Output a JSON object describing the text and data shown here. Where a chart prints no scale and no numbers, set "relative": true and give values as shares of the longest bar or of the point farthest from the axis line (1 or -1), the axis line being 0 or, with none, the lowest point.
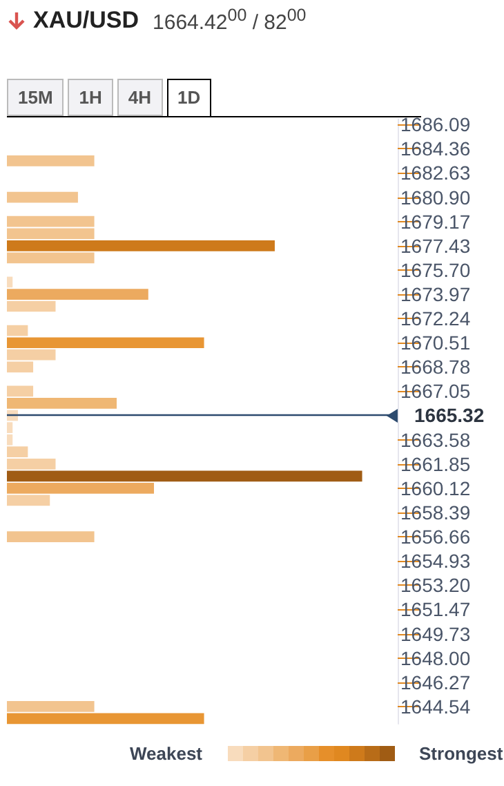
{
  "chart_data": {
    "type": "bar",
    "orientation": "horizontal",
    "relative": true,
    "title": "XAU/USD",
    "subtitle": "1664.42$^{00}$ / 82$^{00}$",
    "annotations": [
      "15M",
      "1H",
      "4H",
      "1D",
      "Weakest",
      "Strongest"
    ],
    "x": [
      1686.09,
      1685.23,
      1684.36,
      1683.5,
      1682.63,
      1681.77,
      1680.9,
      1680.04,
      1679.17,
      1678.3,
      1677.43,
      1676.57,
      1675.7,
      1674.84,
      1673.97,
      1673.11,
      1672.24,
      1671.38,
      1670.51,
      1669.65,
      1668.78,
      1667.92,
      1667.05,
      1666.19,
      1665.32,
      1664.45,
      1663.58,
      1662.72,
      1661.85,
      1660.99,
      1660.12,
      1659.26,
      1658.39,
      1657.53,
      1656.66,
      1655.8,
      1654.93,
      1654.07,
      1653.2,
      1652.34,
      1651.47,
      1650.6,
      1649.73,
      1648.87,
      1648.0,
      1647.14,
      1646.27,
      1645.41,
      1644.54,
      1643.68
    ],
    "values": [
      0,
      0,
      0,
      0.246,
      0,
      0,
      0.2,
      0,
      0.246,
      0.246,
      0.754,
      0.246,
      0,
      0.016,
      0.398,
      0.137,
      0,
      0.059,
      0.555,
      0.137,
      0.074,
      0,
      0.074,
      0.309,
      0.031,
      0.016,
      0.016,
      0.059,
      0.137,
      1,
      0.414,
      0.121,
      0,
      0,
      0.246,
      0,
      0,
      0,
      0,
      0,
      0,
      0,
      0,
      0,
      0,
      0,
      0,
      0,
      0.246,
      0.555
    ],
    "colors": [
      null,
      null,
      null,
      "#f2c48f",
      null,
      null,
      "#f2c48f",
      null,
      "#f2c48f",
      "#f2c48f",
      "#ce7a1b",
      "#f2c48f",
      null,
      "#f8dcbd",
      "#ecaa5f",
      "#f5cfa4",
      null,
      "#f5cfa4",
      "#e89634",
      "#f5cfa4",
      "#f5cfa4",
      null,
      "#f5cfa4",
      "#efb774",
      "#f8dcbd",
      "#f8dcbd",
      "#f8dcbd",
      "#f5cfa4",
      "#f5cfa4",
      "#a05c14",
      "#ecaa5f",
      "#f5cfa4",
      null,
      null,
      "#f2c48f",
      null,
      null,
      null,
      null,
      null,
      null,
      null,
      null,
      null,
      null,
      null,
      null,
      null,
      "#f2c48f",
      "#e89634"
    ],
    "ylim": [
      1643.3,
      1686.5
    ],
    "yticks": [
      1686.09,
      1684.36,
      1682.63,
      {
        "value": 1680.9,
        "label": "1680.90"
      },
      1679.17,
      1677.43,
      {
        "value": 1675.7,
        "label": "1675.70"
      },
      1673.97,
      1672.24,
      1670.51,
      1668.78,
      1667.05,
      1663.58,
      1661.85,
      1660.12,
      1658.39,
      1656.66,
      1654.93,
      {
        "value": 1653.2,
        "label": "1653.20"
      },
      1651.47,
      1649.73,
      {
        "value": 1648,
        "label": "1648.00"
      },
      1646.27,
      1644.54
    ],
    "ref_lines": [
      {
        "axis": "y",
        "value": 1665.32,
        "label": "1665.32",
        "color": "#2c4a6e"
      }
    ],
    "grid": false
  }
}
